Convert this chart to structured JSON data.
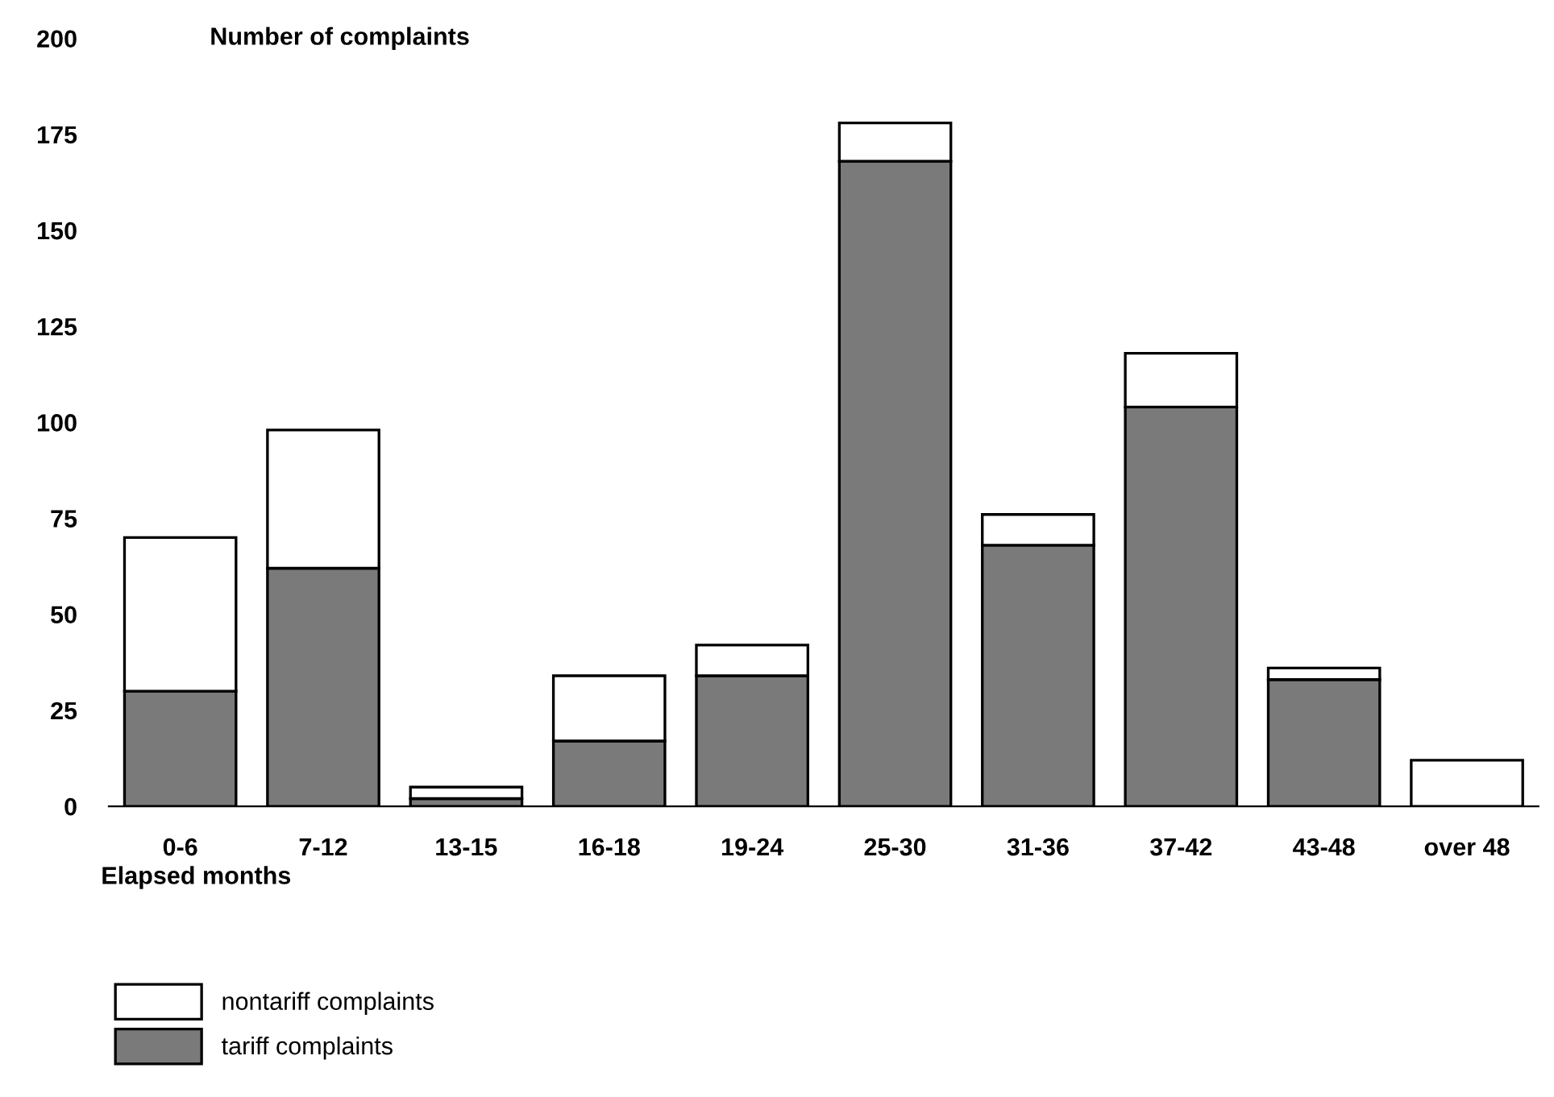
{
  "chart_data": {
    "type": "bar",
    "stacked": true,
    "ylabel": "Number of complaints",
    "xlabel": "Elapsed months",
    "categories": [
      "0-6",
      "7-12",
      "13-15",
      "16-18",
      "19-24",
      "25-30",
      "31-36",
      "37-42",
      "43-48",
      "over 48"
    ],
    "series": [
      {
        "name": "tariff complaints",
        "color": "#7a7a7a",
        "values": [
          30,
          62,
          2,
          17,
          34,
          168,
          68,
          104,
          33,
          0
        ]
      },
      {
        "name": "nontariff complaints",
        "color": "#ffffff",
        "values": [
          40,
          36,
          3,
          17,
          8,
          10,
          8,
          14,
          3,
          12
        ]
      }
    ],
    "ylim": [
      0,
      200
    ],
    "yticks": [
      0,
      25,
      50,
      75,
      100,
      125,
      150,
      175,
      200
    ],
    "grid": false,
    "legend": "bottom left"
  }
}
